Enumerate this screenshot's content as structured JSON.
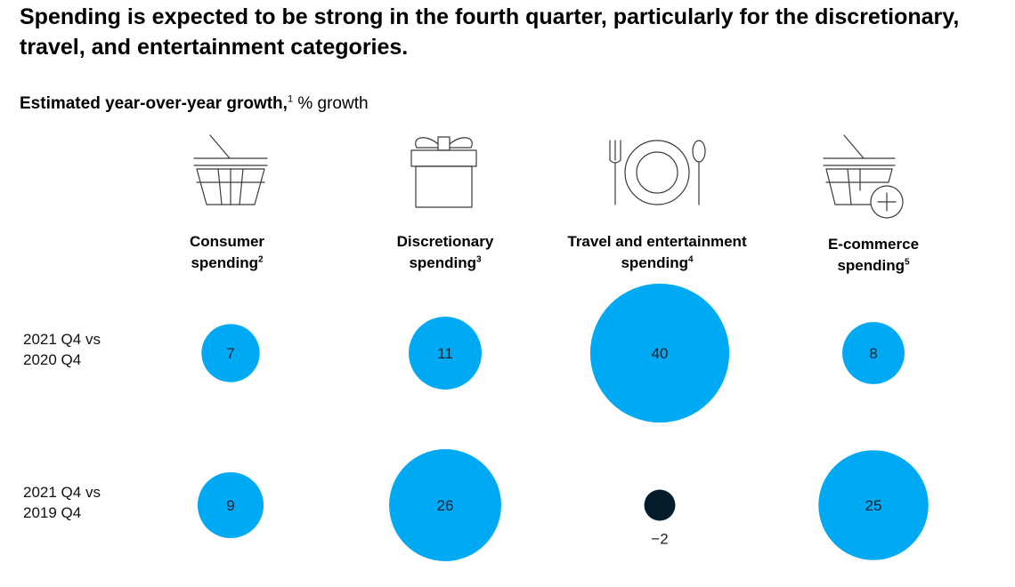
{
  "title": "Spending is expected to be strong in the fourth quarter, particularly for the discretionary, travel, and entertainment categories.",
  "subtitle": {
    "bold": "Estimated year-over-year growth,",
    "footnote": "1",
    "unit": "% growth"
  },
  "rows": [
    {
      "line1": "2021 Q4 vs",
      "line2": "2020 Q4"
    },
    {
      "line1": "2021 Q4 vs",
      "line2": "2019 Q4"
    }
  ],
  "columns": [
    {
      "line1": "Consumer",
      "line2": "spending",
      "footnote": "2",
      "icon": "basket-icon"
    },
    {
      "line1": "Discretionary",
      "line2": "spending",
      "footnote": "3",
      "icon": "gift-icon"
    },
    {
      "line1": "Travel and entertainment",
      "line2": "spending",
      "footnote": "4",
      "icon": "plate-cutlery-icon"
    },
    {
      "line1": "E-commerce",
      "line2": "spending",
      "footnote": "5",
      "icon": "basket-plus-icon"
    }
  ],
  "colors": {
    "positive": "#00a9f4",
    "negative": "#051c2c"
  },
  "chart_data": {
    "type": "bubble",
    "title": "Spending is expected to be strong in the fourth quarter, particularly for the discretionary, travel, and entertainment categories.",
    "ylabel": "Estimated year-over-year growth, % growth",
    "categories": [
      "Consumer spending",
      "Discretionary spending",
      "Travel and entertainment spending",
      "E-commerce spending"
    ],
    "series": [
      {
        "name": "2021 Q4 vs 2020 Q4",
        "values": [
          7,
          11,
          40,
          8
        ],
        "labels": [
          "7",
          "11",
          "40",
          "8"
        ]
      },
      {
        "name": "2021 Q4 vs 2019 Q4",
        "values": [
          9,
          26,
          -2,
          25
        ],
        "labels": [
          "9",
          "26",
          "−2",
          "25"
        ]
      }
    ]
  }
}
